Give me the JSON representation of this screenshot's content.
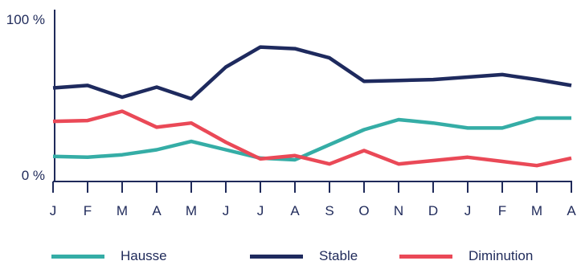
{
  "chart_data": {
    "type": "line",
    "title": "",
    "xlabel": "",
    "ylabel": "",
    "categories": [
      "J",
      "F",
      "M",
      "A",
      "M",
      "J",
      "J",
      "A",
      "S",
      "O",
      "N",
      "D",
      "J",
      "F",
      "M",
      "A"
    ],
    "y_tick_labels": [
      "100 %",
      "0 %"
    ],
    "ylim": [
      0,
      100
    ],
    "grid": false,
    "legend_position": "bottom",
    "series": [
      {
        "name": "Hausse",
        "color": "#35ada6",
        "values": [
          15,
          14.5,
          16,
          19,
          24,
          19,
          14,
          13,
          22,
          31,
          37,
          35,
          32,
          32,
          38,
          38
        ]
      },
      {
        "name": "Stable",
        "color": "#1e2a5e",
        "values": [
          56,
          57.5,
          50.5,
          56.5,
          49.5,
          68.5,
          80.5,
          79.5,
          74,
          60,
          60.5,
          61,
          62.5,
          64,
          61,
          57.5
        ]
      },
      {
        "name": "Diminution",
        "color": "#ea4957",
        "values": [
          36,
          36.5,
          42,
          32.5,
          35,
          23.5,
          13.5,
          15.5,
          10.5,
          18.5,
          10.5,
          12.5,
          14.5,
          12,
          9.5,
          14
        ]
      }
    ]
  }
}
